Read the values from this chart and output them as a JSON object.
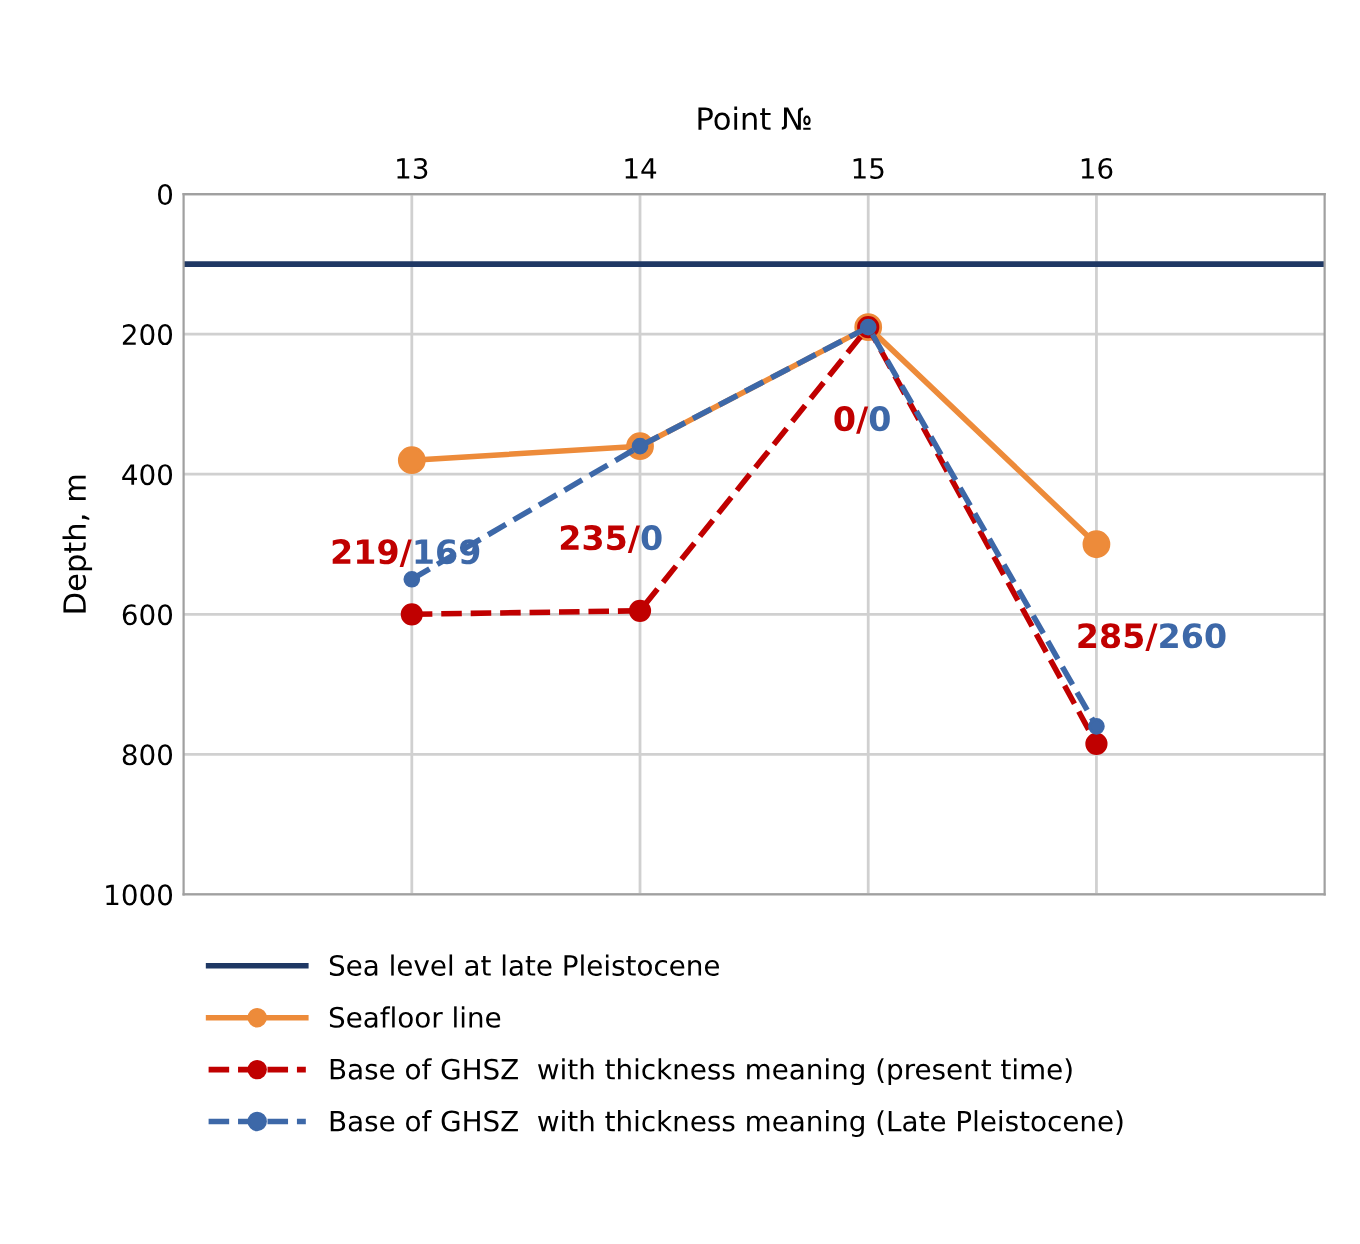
{
  "chart_data": {
    "type": "line",
    "xlabel": "Point №",
    "ylabel": "Depth, m",
    "x": [
      13,
      14,
      15,
      16
    ],
    "xlim": [
      12,
      17
    ],
    "xticks": [
      13,
      14,
      15,
      16
    ],
    "ylim": [
      1000,
      0
    ],
    "yticks": [
      0,
      200,
      400,
      600,
      800,
      1000
    ],
    "grid": true,
    "legend": "bottom",
    "series": [
      {
        "name": "Sea level at late Pleistocene",
        "color": "#1f3864",
        "x": [
          12,
          17
        ],
        "values": [
          100,
          100
        ],
        "marker": "none",
        "line_style": "solid"
      },
      {
        "name": "Seafloor line",
        "color": "#ed8b3a",
        "values": [
          380,
          360,
          190,
          500
        ],
        "marker": "circle",
        "line_style": "solid"
      },
      {
        "name": "Base of GHSZ  with thickness meaning (present time)",
        "color": "#c00000",
        "values": [
          600,
          595,
          190,
          785
        ],
        "marker": "circle",
        "line_style": "dashed"
      },
      {
        "name": "Base of GHSZ  with thickness meaning (Late Pleistocene)",
        "color": "#3d68a8",
        "values": [
          550,
          360,
          190,
          760
        ],
        "marker": "circle",
        "line_style": "dashed"
      }
    ],
    "annotations": [
      "219/169",
      "235/0",
      "0/0",
      "285/260"
    ]
  }
}
